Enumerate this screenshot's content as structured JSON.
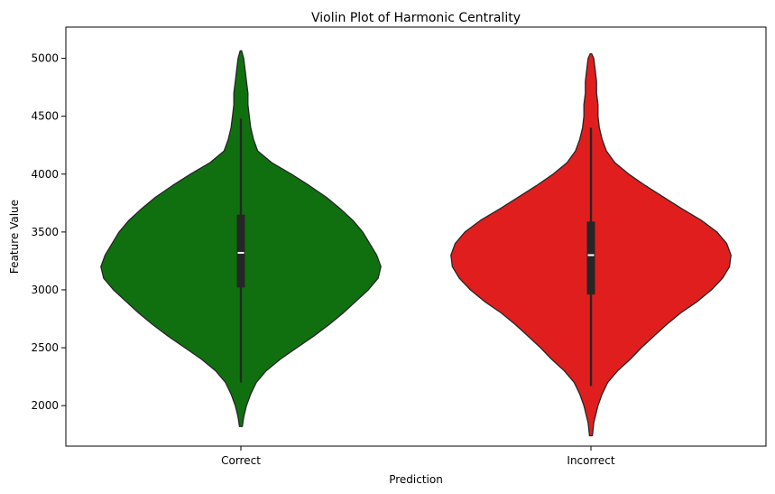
{
  "chart_data": {
    "type": "violin",
    "title": "Violin Plot of Harmonic Centrality",
    "xlabel": "Prediction",
    "ylabel": "Feature Value",
    "categories": [
      "Correct",
      "Incorrect"
    ],
    "ylim": [
      1650,
      5270
    ],
    "yticks": [
      2000,
      2500,
      3000,
      3500,
      4000,
      4500,
      5000
    ],
    "grid": false,
    "legend": "none",
    "colors": [
      "#107010",
      "#e01e1e"
    ],
    "outline_color": "#262626",
    "violins": [
      {
        "category": "Correct",
        "min": 1820,
        "max": 5065,
        "whisker_low": 2200,
        "q1": 3020,
        "median": 3320,
        "q3": 3650,
        "whisker_high": 4480,
        "density_profile": [
          [
            1820,
            0.01
          ],
          [
            1900,
            0.02
          ],
          [
            2000,
            0.04
          ],
          [
            2100,
            0.07
          ],
          [
            2200,
            0.11
          ],
          [
            2300,
            0.18
          ],
          [
            2400,
            0.28
          ],
          [
            2500,
            0.4
          ],
          [
            2600,
            0.52
          ],
          [
            2700,
            0.63
          ],
          [
            2800,
            0.73
          ],
          [
            2900,
            0.82
          ],
          [
            3000,
            0.91
          ],
          [
            3100,
            0.98
          ],
          [
            3200,
            1.0
          ],
          [
            3300,
            0.97
          ],
          [
            3400,
            0.92
          ],
          [
            3500,
            0.87
          ],
          [
            3600,
            0.8
          ],
          [
            3700,
            0.71
          ],
          [
            3800,
            0.61
          ],
          [
            3900,
            0.49
          ],
          [
            4000,
            0.36
          ],
          [
            4100,
            0.22
          ],
          [
            4200,
            0.12
          ],
          [
            4300,
            0.09
          ],
          [
            4400,
            0.07
          ],
          [
            4500,
            0.06
          ],
          [
            4600,
            0.05
          ],
          [
            4700,
            0.05
          ],
          [
            4800,
            0.04
          ],
          [
            4900,
            0.03
          ],
          [
            5000,
            0.02
          ],
          [
            5065,
            0.005
          ]
        ]
      },
      {
        "category": "Incorrect",
        "min": 1740,
        "max": 5040,
        "whisker_low": 2170,
        "q1": 2960,
        "median": 3300,
        "q3": 3590,
        "whisker_high": 4400,
        "density_profile": [
          [
            1740,
            0.01
          ],
          [
            1850,
            0.02
          ],
          [
            2000,
            0.05
          ],
          [
            2100,
            0.08
          ],
          [
            2200,
            0.12
          ],
          [
            2300,
            0.19
          ],
          [
            2400,
            0.28
          ],
          [
            2500,
            0.36
          ],
          [
            2600,
            0.45
          ],
          [
            2700,
            0.54
          ],
          [
            2800,
            0.64
          ],
          [
            2900,
            0.76
          ],
          [
            3000,
            0.86
          ],
          [
            3100,
            0.94
          ],
          [
            3200,
            0.99
          ],
          [
            3300,
            1.0
          ],
          [
            3400,
            0.97
          ],
          [
            3500,
            0.9
          ],
          [
            3600,
            0.79
          ],
          [
            3700,
            0.65
          ],
          [
            3800,
            0.52
          ],
          [
            3900,
            0.39
          ],
          [
            4000,
            0.27
          ],
          [
            4100,
            0.17
          ],
          [
            4200,
            0.11
          ],
          [
            4300,
            0.08
          ],
          [
            4400,
            0.06
          ],
          [
            4500,
            0.05
          ],
          [
            4600,
            0.05
          ],
          [
            4700,
            0.04
          ],
          [
            4800,
            0.04
          ],
          [
            4900,
            0.03
          ],
          [
            5000,
            0.02
          ],
          [
            5040,
            0.005
          ]
        ]
      }
    ]
  }
}
